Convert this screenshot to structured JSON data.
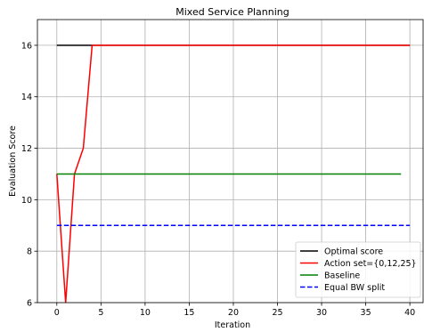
{
  "chart_data": {
    "type": "line",
    "title": "Mixed Service Planning",
    "xlabel": "Iteration",
    "ylabel": "Evaluation Score",
    "xlim": [
      -2.2,
      41.5
    ],
    "ylim": [
      6,
      17
    ],
    "xticks": [
      0,
      5,
      10,
      15,
      20,
      25,
      30,
      35,
      40
    ],
    "yticks": [
      6,
      8,
      10,
      12,
      14,
      16
    ],
    "grid": true,
    "legend_position": "bottom-right",
    "series": [
      {
        "name": "Optimal score",
        "color": "#000000",
        "dash": "solid",
        "x": [
          0,
          40
        ],
        "y": [
          16,
          16
        ]
      },
      {
        "name": "Action set={0,12,25}",
        "color": "#ff0000",
        "dash": "solid",
        "x": [
          0,
          1,
          2,
          3,
          4,
          5,
          10,
          15,
          20,
          25,
          30,
          35,
          40
        ],
        "y": [
          11,
          6,
          11,
          12,
          16,
          16,
          16,
          16,
          16,
          16,
          16,
          16,
          16
        ]
      },
      {
        "name": "Baseline",
        "color": "#008000",
        "dash": "solid",
        "x": [
          0,
          39
        ],
        "y": [
          11,
          11
        ]
      },
      {
        "name": "Equal BW split",
        "color": "#0000ff",
        "dash": "dashed",
        "x": [
          0,
          40
        ],
        "y": [
          9,
          9
        ]
      }
    ]
  }
}
